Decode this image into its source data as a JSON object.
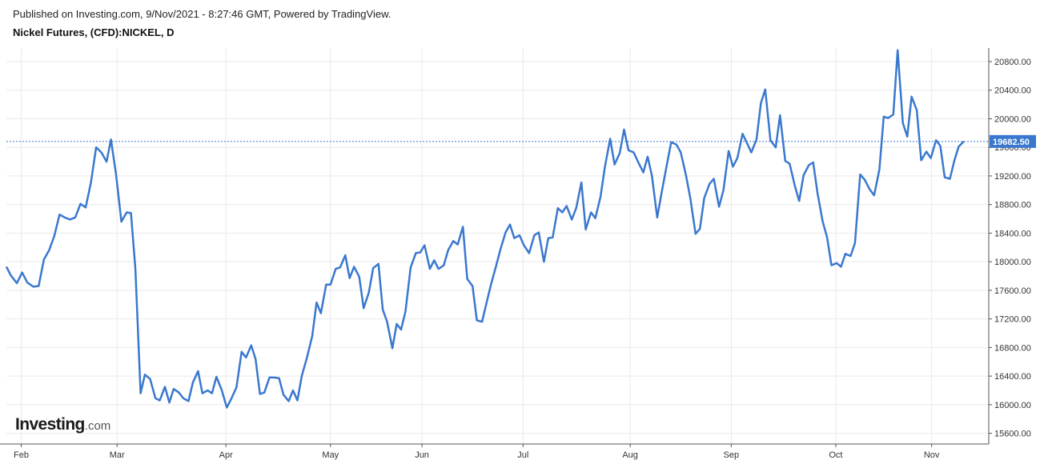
{
  "header": {
    "published": "Published on Investing.com, 9/Nov/2021 - 8:27:46 GMT, Powered by TradingView.",
    "instrument": "Nickel Futures, (CFD):NICKEL, D"
  },
  "watermark": {
    "brand": "Investing",
    "domain": ".com"
  },
  "colors": {
    "line": "#3a78cf",
    "price_tag": "#3a78cf",
    "grid": "#e9e9e9",
    "axis": "#555555"
  },
  "chart_data": {
    "type": "line",
    "title": "Nickel Futures, (CFD):NICKEL, D",
    "x_ticks": [
      "Feb",
      "Mar",
      "Apr",
      "May",
      "Jun",
      "Jul",
      "Aug",
      "Sep",
      "Oct",
      "Nov"
    ],
    "y_ticks": [
      15600,
      16000,
      16400,
      16800,
      17200,
      17600,
      18000,
      18400,
      18800,
      19200,
      19600,
      20000,
      20400,
      20800
    ],
    "y_tick_labels": [
      "15600.00",
      "16000.00",
      "16400.00",
      "16800.00",
      "17200.00",
      "17600.00",
      "18000.00",
      "18400.00",
      "18800.00",
      "19200.00",
      "19600.00",
      "20000.00",
      "20400.00",
      "20800.00"
    ],
    "ylim": [
      15450,
      20990
    ],
    "grid": true,
    "last_price": 19682.5,
    "last_price_label": "19682.50",
    "series": [
      {
        "values": [
          [
            0,
            17930
          ],
          [
            5,
            17810
          ],
          [
            12,
            17700
          ],
          [
            18,
            17850
          ],
          [
            24,
            17710
          ],
          [
            31,
            17650
          ],
          [
            37,
            17660
          ],
          [
            43,
            18030
          ],
          [
            49,
            18160
          ],
          [
            55,
            18360
          ],
          [
            61,
            18660
          ],
          [
            67,
            18620
          ],
          [
            73,
            18590
          ],
          [
            79,
            18620
          ],
          [
            85,
            18810
          ],
          [
            91,
            18760
          ],
          [
            97,
            19110
          ],
          [
            103,
            19600
          ],
          [
            109,
            19530
          ],
          [
            115,
            19400
          ],
          [
            120,
            19710
          ],
          [
            126,
            19210
          ],
          [
            132,
            18560
          ],
          [
            138,
            18690
          ],
          [
            143,
            18680
          ],
          [
            148,
            17900
          ],
          [
            154,
            16160
          ],
          [
            159,
            16420
          ],
          [
            165,
            16360
          ],
          [
            171,
            16090
          ],
          [
            176,
            16060
          ],
          [
            182,
            16250
          ],
          [
            187,
            16030
          ],
          [
            192,
            16220
          ],
          [
            198,
            16170
          ],
          [
            203,
            16090
          ],
          [
            209,
            16050
          ],
          [
            214,
            16310
          ],
          [
            220,
            16470
          ],
          [
            225,
            16160
          ],
          [
            231,
            16200
          ],
          [
            236,
            16160
          ],
          [
            241,
            16390
          ],
          [
            247,
            16210
          ],
          [
            253,
            15960
          ],
          [
            258,
            16080
          ],
          [
            264,
            16240
          ],
          [
            270,
            16740
          ],
          [
            275,
            16660
          ],
          [
            281,
            16830
          ],
          [
            286,
            16640
          ],
          [
            291,
            16150
          ],
          [
            296,
            16170
          ],
          [
            302,
            16380
          ],
          [
            307,
            16380
          ],
          [
            313,
            16370
          ],
          [
            318,
            16140
          ],
          [
            324,
            16050
          ],
          [
            329,
            16200
          ],
          [
            334,
            16060
          ],
          [
            339,
            16400
          ],
          [
            345,
            16660
          ],
          [
            351,
            16960
          ],
          [
            356,
            17430
          ],
          [
            361,
            17280
          ],
          [
            367,
            17680
          ],
          [
            372,
            17680
          ],
          [
            378,
            17900
          ],
          [
            383,
            17920
          ],
          [
            389,
            18090
          ],
          [
            394,
            17770
          ],
          [
            399,
            17930
          ],
          [
            405,
            17790
          ],
          [
            410,
            17350
          ],
          [
            416,
            17570
          ],
          [
            421,
            17910
          ],
          [
            427,
            17970
          ],
          [
            432,
            17330
          ],
          [
            437,
            17160
          ],
          [
            443,
            16790
          ],
          [
            448,
            17130
          ],
          [
            453,
            17050
          ],
          [
            458,
            17300
          ],
          [
            464,
            17920
          ],
          [
            470,
            18120
          ],
          [
            475,
            18130
          ],
          [
            480,
            18230
          ],
          [
            486,
            17900
          ],
          [
            491,
            18020
          ],
          [
            496,
            17900
          ],
          [
            502,
            17950
          ],
          [
            507,
            18160
          ],
          [
            513,
            18290
          ],
          [
            518,
            18240
          ],
          [
            524,
            18490
          ],
          [
            529,
            17760
          ],
          [
            535,
            17660
          ],
          [
            540,
            17180
          ],
          [
            546,
            17160
          ],
          [
            551,
            17420
          ],
          [
            556,
            17670
          ],
          [
            562,
            17940
          ],
          [
            567,
            18170
          ],
          [
            573,
            18410
          ],
          [
            578,
            18520
          ],
          [
            583,
            18330
          ],
          [
            589,
            18370
          ],
          [
            594,
            18230
          ],
          [
            600,
            18120
          ],
          [
            606,
            18370
          ],
          [
            611,
            18410
          ],
          [
            617,
            18000
          ],
          [
            622,
            18330
          ],
          [
            627,
            18340
          ],
          [
            633,
            18750
          ],
          [
            638,
            18690
          ],
          [
            643,
            18780
          ],
          [
            649,
            18590
          ],
          [
            654,
            18750
          ],
          [
            660,
            19110
          ],
          [
            665,
            18450
          ],
          [
            671,
            18690
          ],
          [
            676,
            18610
          ],
          [
            682,
            18910
          ],
          [
            687,
            19330
          ],
          [
            693,
            19720
          ],
          [
            698,
            19360
          ],
          [
            704,
            19520
          ],
          [
            709,
            19850
          ],
          [
            714,
            19560
          ],
          [
            720,
            19530
          ],
          [
            725,
            19400
          ],
          [
            731,
            19250
          ],
          [
            736,
            19470
          ],
          [
            741,
            19200
          ],
          [
            747,
            18620
          ],
          [
            752,
            18960
          ],
          [
            758,
            19350
          ],
          [
            763,
            19670
          ],
          [
            769,
            19640
          ],
          [
            774,
            19530
          ],
          [
            780,
            19210
          ],
          [
            785,
            18890
          ],
          [
            791,
            18390
          ],
          [
            796,
            18460
          ],
          [
            801,
            18890
          ],
          [
            807,
            19090
          ],
          [
            812,
            19160
          ],
          [
            818,
            18770
          ],
          [
            823,
            19000
          ],
          [
            829,
            19550
          ],
          [
            834,
            19330
          ],
          [
            839,
            19450
          ],
          [
            845,
            19790
          ],
          [
            850,
            19660
          ],
          [
            855,
            19530
          ],
          [
            861,
            19710
          ],
          [
            866,
            20220
          ],
          [
            871,
            20410
          ],
          [
            877,
            19700
          ],
          [
            883,
            19600
          ],
          [
            888,
            20050
          ],
          [
            894,
            19410
          ],
          [
            899,
            19370
          ],
          [
            905,
            19060
          ],
          [
            910,
            18850
          ],
          [
            915,
            19210
          ],
          [
            921,
            19350
          ],
          [
            926,
            19390
          ],
          [
            931,
            18960
          ],
          [
            937,
            18560
          ],
          [
            942,
            18340
          ],
          [
            947,
            17950
          ],
          [
            953,
            17980
          ],
          [
            958,
            17930
          ],
          [
            963,
            18110
          ],
          [
            969,
            18080
          ],
          [
            974,
            18260
          ],
          [
            980,
            19220
          ],
          [
            985,
            19150
          ],
          [
            991,
            19010
          ],
          [
            996,
            18930
          ],
          [
            1002,
            19290
          ],
          [
            1007,
            20030
          ],
          [
            1012,
            20010
          ],
          [
            1018,
            20060
          ],
          [
            1023,
            20960
          ],
          [
            1029,
            19940
          ],
          [
            1034,
            19750
          ],
          [
            1039,
            20310
          ],
          [
            1045,
            20120
          ],
          [
            1050,
            19420
          ],
          [
            1056,
            19540
          ],
          [
            1061,
            19450
          ],
          [
            1067,
            19700
          ],
          [
            1072,
            19620
          ],
          [
            1077,
            19180
          ],
          [
            1083,
            19160
          ],
          [
            1088,
            19410
          ],
          [
            1093,
            19610
          ],
          [
            1099,
            19682.5
          ]
        ]
      }
    ]
  }
}
